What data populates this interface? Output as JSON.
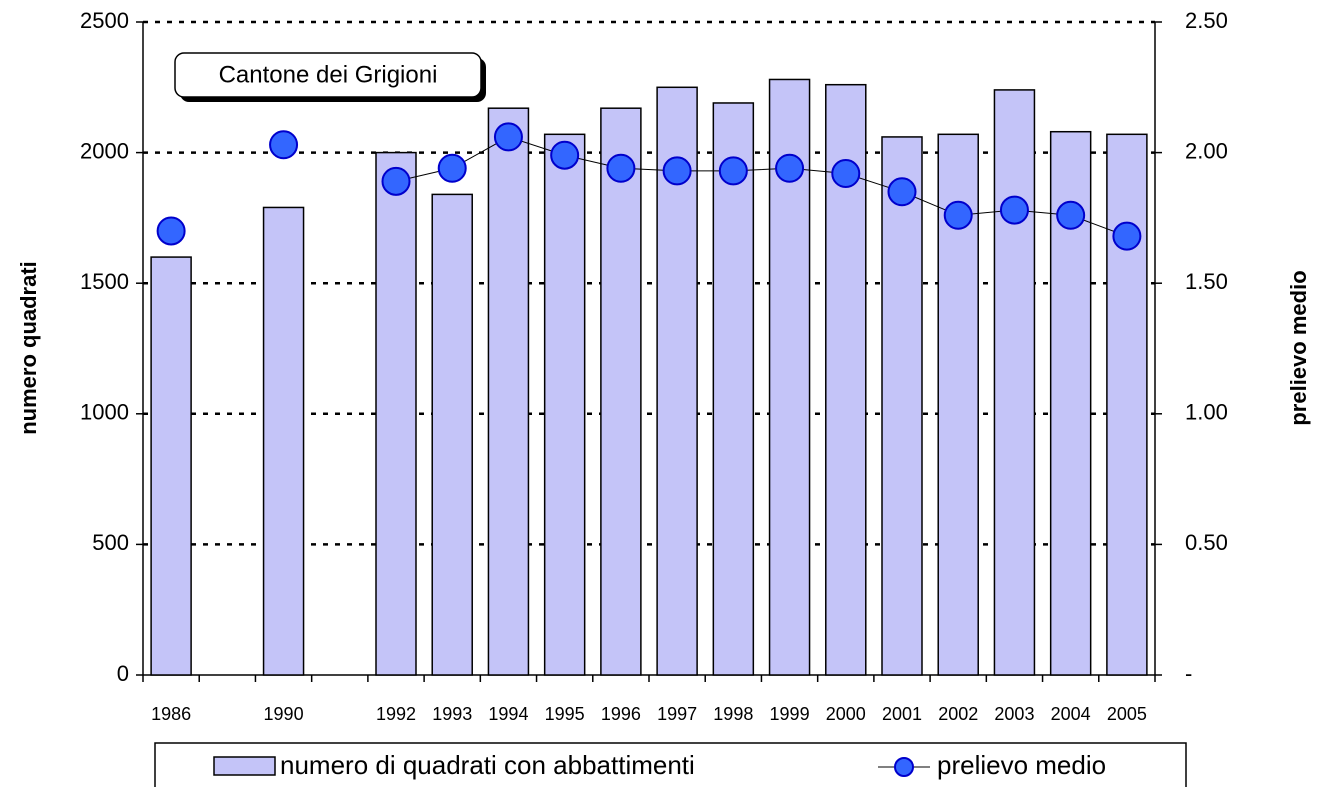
{
  "chart_data": {
    "type": "bar",
    "annotation": "Cantone dei Grigioni",
    "ylabel": "numero quadrati",
    "y2label": "prelievo medio",
    "categories": [
      "1986",
      null,
      "1990",
      null,
      "1992",
      "1993",
      "1994",
      "1995",
      "1996",
      "1997",
      "1998",
      "1999",
      "2000",
      "2001",
      "2002",
      "2003",
      "2004",
      "2005"
    ],
    "series": [
      {
        "name": "numero di quadrati con abbattimenti",
        "type": "bar",
        "color": "#c4c4f8",
        "values": [
          1600,
          null,
          1790,
          null,
          2000,
          1840,
          2170,
          2070,
          2170,
          2250,
          2190,
          2280,
          2260,
          2060,
          2070,
          2240,
          2080,
          2070
        ]
      },
      {
        "name": "prelievo medio",
        "type": "line",
        "axis": "y2",
        "color": "#3366ff",
        "values": [
          1.7,
          null,
          2.03,
          null,
          1.89,
          1.94,
          2.06,
          1.99,
          1.94,
          1.93,
          1.93,
          1.94,
          1.92,
          1.85,
          1.76,
          1.78,
          1.76,
          1.68
        ]
      }
    ],
    "ylim": [
      0,
      2500
    ],
    "yticks": [
      0,
      500,
      1000,
      1500,
      2000,
      2500
    ],
    "y2lim": [
      0,
      2.5
    ],
    "y2ticks": [
      {
        "value": 0,
        "label": "-"
      },
      {
        "value": 0.5,
        "label": "0.50"
      },
      {
        "value": 1,
        "label": "1.00"
      },
      {
        "value": 1.5,
        "label": "1.50"
      },
      {
        "value": 2,
        "label": "2.00"
      },
      {
        "value": 2.5,
        "label": "2.50"
      }
    ],
    "grid": true,
    "legend": "bottom"
  }
}
